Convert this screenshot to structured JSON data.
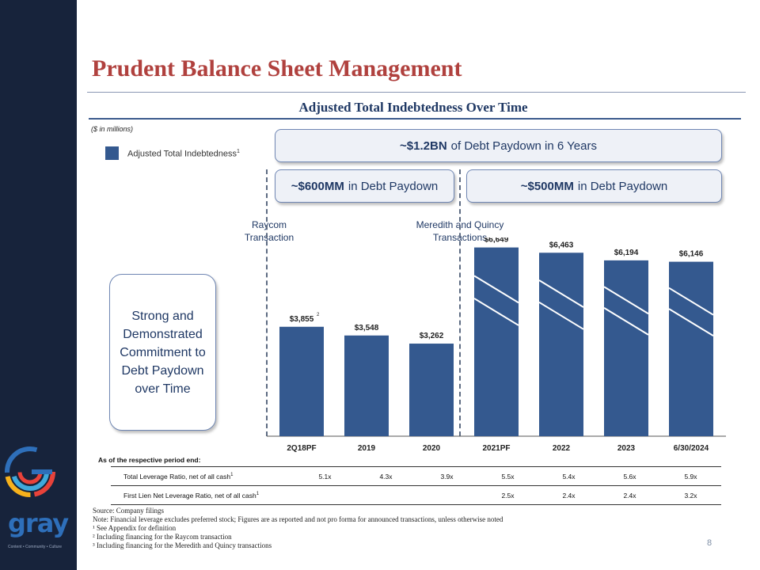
{
  "slide": {
    "title": "Prudent Balance Sheet Management",
    "page_number": "8"
  },
  "logo": {
    "text": "gray",
    "tagline": "Content • Community • Culture"
  },
  "chart_data": {
    "type": "bar",
    "title": "Adjusted Total Indebtedness Over Time",
    "units_note": "($ in millions)",
    "categories": [
      "2Q18PF",
      "2019",
      "2020",
      "2021PF",
      "2022",
      "2023",
      "6/30/2024"
    ],
    "series": [
      {
        "name": "Adjusted Total Indebtedness",
        "values": [
          3855,
          3548,
          3262,
          6649,
          6463,
          6194,
          6146
        ],
        "labels": [
          "$3,855",
          "$3,548",
          "$3,262",
          "$6,649",
          "$6,463",
          "$6,194",
          "$6,146"
        ],
        "footnotes": [
          "2",
          "",
          "",
          "3",
          "",
          "",
          ""
        ],
        "color": "#34598f"
      }
    ],
    "legend": {
      "label": "Adjusted Total Indebtedness",
      "sup": "1",
      "position": "top-left"
    },
    "ylim": [
      0,
      7000
    ],
    "grid": false,
    "hatched_categories": [
      "2021PF",
      "2022",
      "2023",
      "6/30/2024"
    ]
  },
  "callouts": {
    "total": {
      "bold": "~$1.2BN",
      "rest": "of Debt Paydown in 6 Years"
    },
    "left": {
      "bold": "~$600MM",
      "rest": "in Debt Paydown"
    },
    "right": {
      "bold": "~$500MM",
      "rest": "in Debt Paydown"
    }
  },
  "transactions": {
    "raycom": "Raycom Transaction",
    "meredith": "Meredith and Quincy Transactions"
  },
  "commitment_box": "Strong and Demonstrated Commitment to Debt Paydown over Time",
  "ratios": {
    "header": "As of the respective period end:",
    "rows": [
      {
        "label": "Total Leverage Ratio, net of all cash",
        "sup": "1",
        "values": [
          "5.1x",
          "4.3x",
          "3.9x",
          "5.5x",
          "5.4x",
          "5.6x",
          "5.9x"
        ]
      },
      {
        "label": "First Lien Net Leverage Ratio, net of all cash",
        "sup": "1",
        "values": [
          "",
          "",
          "",
          "2.5x",
          "2.4x",
          "2.4x",
          "3.2x"
        ]
      }
    ]
  },
  "footnotes": {
    "source": "Source: Company filings",
    "note": "Note: Financial leverage excludes preferred stock; Figures are as reported and not pro forma for announced transactions, unless otherwise noted",
    "fn1": "¹ See Appendix for definition",
    "fn2": "² Including financing for the Raycom transaction",
    "fn3": "³ Including financing for the Meredith and Quincy transactions"
  },
  "colors": {
    "sidebar": "#17233b",
    "title": "#b0413e",
    "bar": "#34598f",
    "accent": "#1f3864"
  }
}
